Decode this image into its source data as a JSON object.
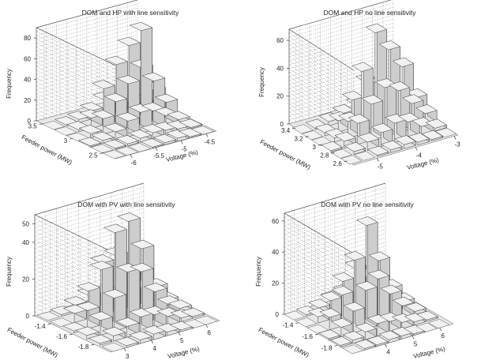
{
  "colors": {
    "bar_face": "#e2e2e2",
    "bar_side": "#cdcdcd",
    "bar_top": "#f1f1f1",
    "edge": "#3c3c3c",
    "floor": "#e6e6e6",
    "wall_grid": "#9a9a9a"
  },
  "chart_data": [
    {
      "type": "bar3d",
      "title": "DOM and HP with line sensitivity",
      "zlabel": "Frequency",
      "xlabel": "Voltage (%)",
      "ylabel": "Feeder power (MW)",
      "z_ticks": [
        "0",
        "20",
        "40",
        "60",
        "80"
      ],
      "x_ticks": [
        "-6",
        "-5.5",
        "-5",
        "-4.5"
      ],
      "y_ticks": [
        "2.5",
        "3",
        "3.5"
      ],
      "zlim": [
        0,
        90
      ],
      "x_range": [
        -6.3,
        -4.3
      ],
      "y_range": [
        2.3,
        3.6
      ],
      "x_bins": [
        -6.2,
        -5.95,
        -5.7,
        -5.45,
        -5.2,
        -4.95,
        -4.7,
        -4.45
      ],
      "y_bins": [
        2.4,
        2.6,
        2.8,
        3.0,
        3.2,
        3.4
      ],
      "grid": true,
      "values": [
        [
          0,
          0,
          0,
          1,
          2,
          3,
          1,
          0
        ],
        [
          0,
          1,
          2,
          4,
          6,
          5,
          3,
          1
        ],
        [
          1,
          3,
          8,
          15,
          20,
          18,
          10,
          3
        ],
        [
          0,
          4,
          15,
          28,
          42,
          90,
          38,
          14
        ],
        [
          0,
          2,
          10,
          35,
          55,
          70,
          45,
          20
        ],
        [
          0,
          1,
          3,
          8,
          15,
          12,
          6,
          2
        ]
      ]
    },
    {
      "type": "bar3d",
      "title": "DOM and HP no line sensitivity",
      "zlabel": "Frequency",
      "xlabel": "Voltage (%)",
      "ylabel": "Feeder power (MW)",
      "z_ticks": [
        "0",
        "20",
        "40",
        "60"
      ],
      "x_ticks": [
        "-5",
        "-4",
        "-3"
      ],
      "y_ticks": [
        "2.6",
        "2.8",
        "3",
        "3.2",
        "3.4"
      ],
      "zlim": [
        0,
        68
      ],
      "x_range": [
        -5.6,
        -2.9
      ],
      "y_range": [
        2.5,
        3.5
      ],
      "x_bins": [
        -5.5,
        -5.15,
        -4.8,
        -4.45,
        -4.1,
        -3.75,
        -3.4,
        -3.05
      ],
      "y_bins": [
        2.6,
        2.75,
        2.9,
        3.05,
        3.2,
        3.35
      ],
      "grid": true,
      "values": [
        [
          0,
          0,
          1,
          2,
          3,
          2,
          1,
          0
        ],
        [
          0,
          2,
          6,
          10,
          14,
          12,
          6,
          2
        ],
        [
          1,
          5,
          15,
          26,
          35,
          30,
          18,
          8
        ],
        [
          0,
          3,
          12,
          45,
          70,
          55,
          40,
          15
        ],
        [
          0,
          2,
          8,
          20,
          30,
          25,
          12,
          4
        ],
        [
          0,
          1,
          3,
          6,
          9,
          7,
          3,
          1
        ]
      ]
    },
    {
      "type": "bar3d",
      "title": "DOM with PV with line sensitivity",
      "zlabel": "Frequency",
      "xlabel": "Voltage (%)",
      "ylabel": "Feeder power (MW)",
      "z_ticks": [
        "0",
        "20",
        "40",
        "50"
      ],
      "x_ticks": [
        "3",
        "4",
        "5",
        "6"
      ],
      "y_ticks": [
        "-1.8",
        "-1.6",
        "-1.4"
      ],
      "z_tick_values": [
        0,
        20,
        40,
        50
      ],
      "zlim": [
        0,
        55
      ],
      "x_range": [
        2.5,
        6.5
      ],
      "y_range": [
        -1.95,
        -1.25
      ],
      "x_bins": [
        2.8,
        3.3,
        3.8,
        4.3,
        4.8,
        5.3,
        5.8,
        6.2
      ],
      "y_bins": [
        -1.9,
        -1.78,
        -1.66,
        -1.54,
        -1.42,
        -1.3
      ],
      "grid": true,
      "values": [
        [
          0,
          1,
          2,
          3,
          2,
          1,
          0,
          0
        ],
        [
          1,
          3,
          6,
          9,
          8,
          5,
          2,
          1
        ],
        [
          2,
          8,
          18,
          30,
          28,
          15,
          6,
          2
        ],
        [
          1,
          10,
          30,
          48,
          52,
          35,
          12,
          3
        ],
        [
          0,
          5,
          15,
          28,
          30,
          18,
          8,
          2
        ],
        [
          0,
          1,
          4,
          7,
          6,
          3,
          1,
          0
        ]
      ]
    },
    {
      "type": "bar3d",
      "title": "DOM with PV no line sensitivity",
      "zlabel": "Frequency",
      "xlabel": "Voltage (%)",
      "ylabel": "Feeder power (MW)",
      "z_ticks": [
        "0",
        "20",
        "40",
        "60"
      ],
      "x_ticks": [
        "4",
        "5",
        "6"
      ],
      "y_ticks": [
        "-1.8",
        "-1.6",
        "-1.4"
      ],
      "zlim": [
        0,
        65
      ],
      "x_range": [
        2.8,
        6.5
      ],
      "y_range": [
        -1.95,
        -1.25
      ],
      "x_bins": [
        3.0,
        3.45,
        3.9,
        4.35,
        4.8,
        5.25,
        5.7,
        6.15
      ],
      "y_bins": [
        -1.9,
        -1.78,
        -1.66,
        -1.54,
        -1.42,
        -1.3
      ],
      "grid": true,
      "values": [
        [
          0,
          1,
          1,
          2,
          2,
          1,
          0,
          0
        ],
        [
          1,
          2,
          5,
          8,
          7,
          4,
          2,
          1
        ],
        [
          1,
          6,
          14,
          25,
          30,
          18,
          8,
          2
        ],
        [
          0,
          8,
          20,
          40,
          60,
          35,
          15,
          4
        ],
        [
          0,
          4,
          12,
          22,
          28,
          20,
          10,
          3
        ],
        [
          0,
          1,
          3,
          6,
          8,
          5,
          2,
          1
        ]
      ]
    }
  ]
}
